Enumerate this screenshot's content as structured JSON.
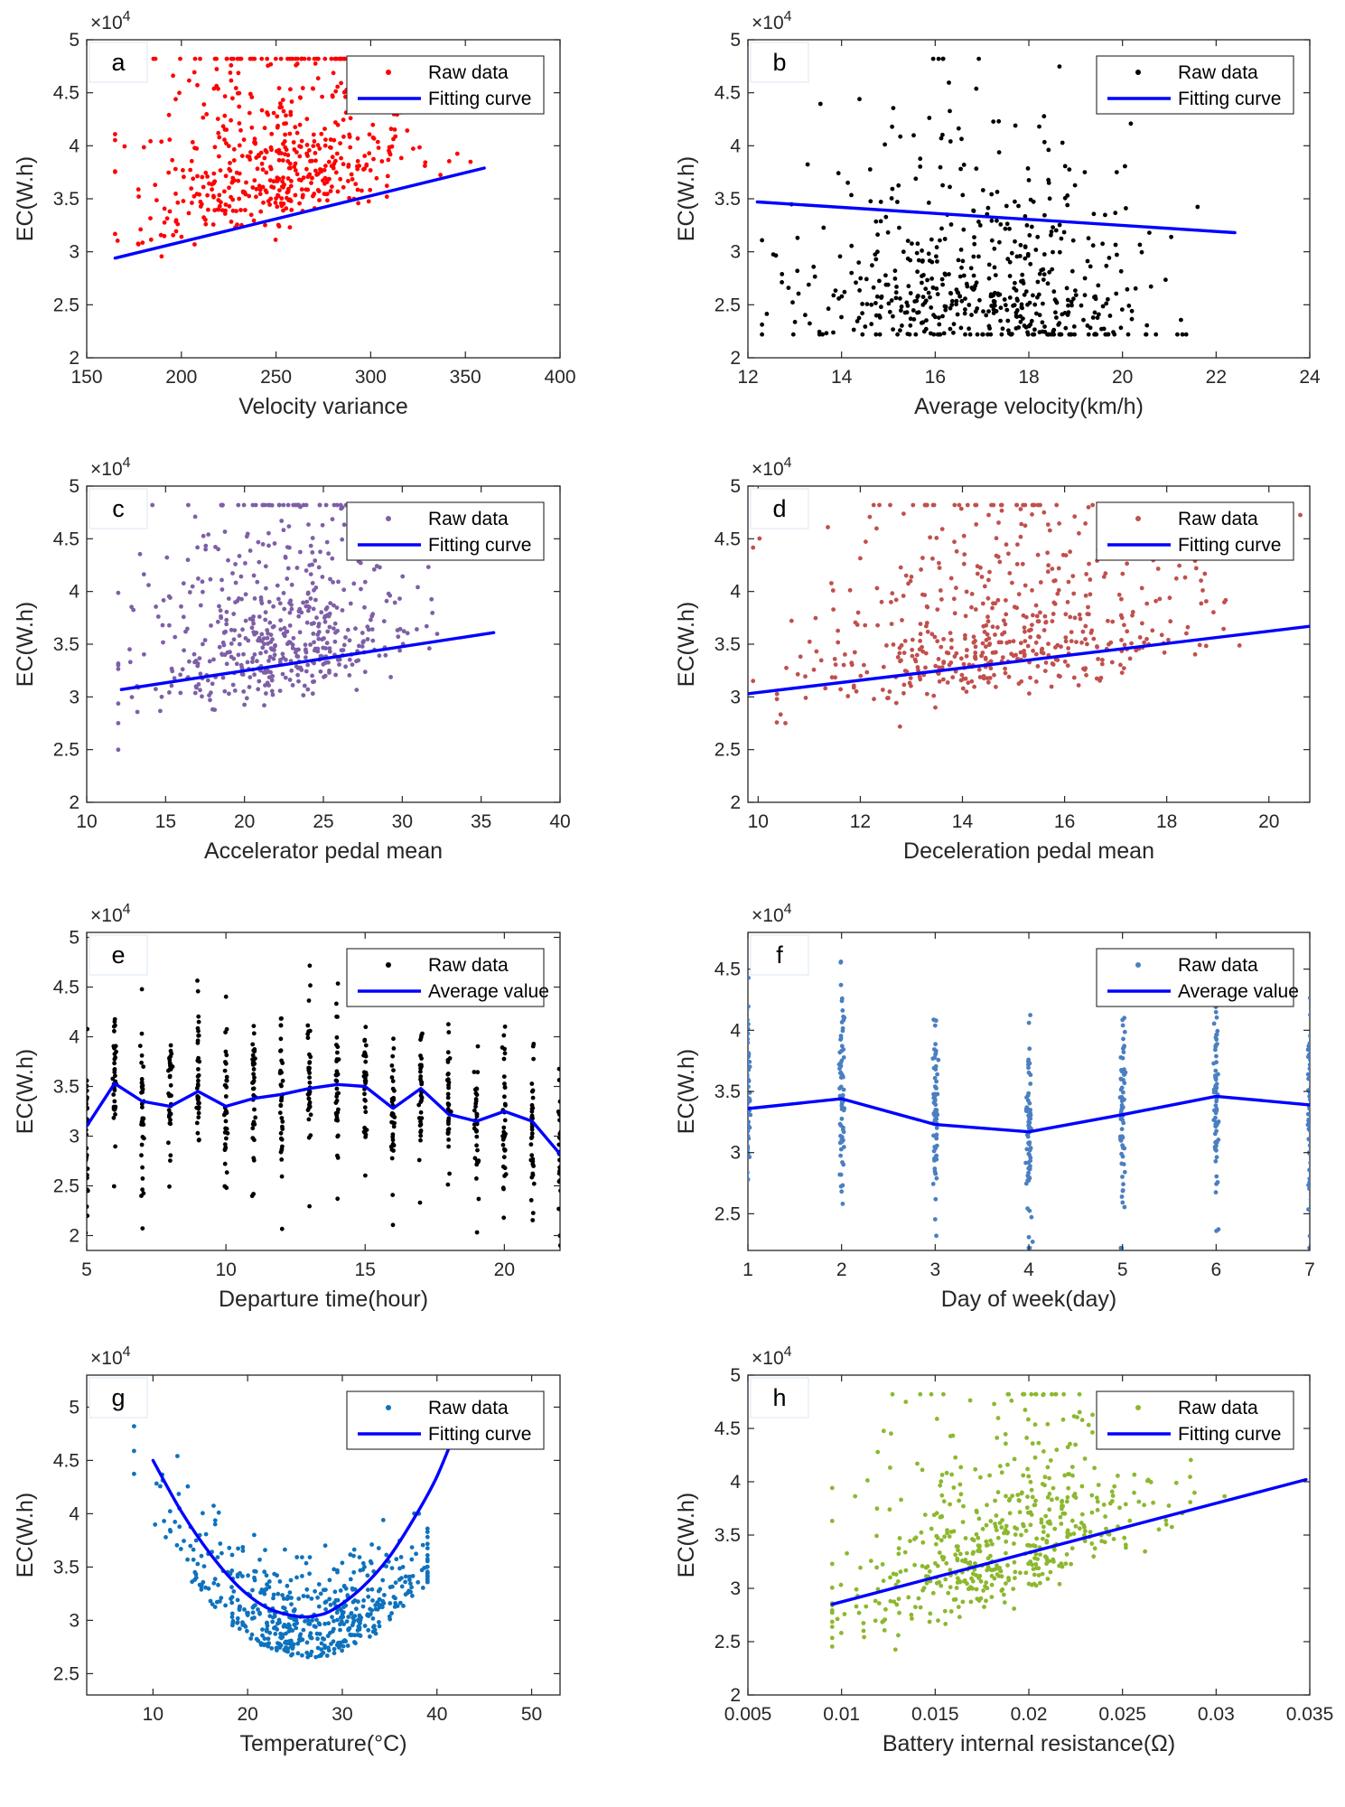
{
  "chart_data": [
    {
      "panel": "a",
      "type": "scatter",
      "title": "",
      "xlabel": "Velocity variance",
      "ylabel": "EC(W.h)",
      "y_multiplier": "×10",
      "y_multiplier_exp": "4",
      "xlim": [
        150,
        400
      ],
      "ylim": [
        2,
        5
      ],
      "xticks": [
        150,
        200,
        250,
        300,
        350,
        400
      ],
      "xtick_labels": [
        "150",
        "200",
        "250",
        "300",
        "350",
        "400"
      ],
      "yticks": [
        2,
        2.5,
        3,
        3.5,
        4,
        4.5,
        5
      ],
      "ytick_labels": [
        "2",
        "2.5",
        "3",
        "3.5",
        "4",
        "4.5",
        "5"
      ],
      "point_color": "#ff0000",
      "point_cloud": {
        "n": 560,
        "x_center": 255,
        "x_spread": 38,
        "x_min": 165,
        "x_max": 360,
        "y_base": 2.28,
        "y_scale": 0.78,
        "y_trend": 0.0045,
        "y_min": 2.22,
        "y_max": 4.82,
        "seed": 11
      },
      "series": [
        {
          "name": "Fitting curve",
          "kind": "line",
          "color": "#0000ff",
          "x": [
            165,
            360
          ],
          "y": [
            2.94,
            3.79
          ]
        }
      ],
      "legend": {
        "position": "top-right",
        "items": [
          {
            "label": "Raw data",
            "kind": "dot",
            "color": "#ff0000"
          },
          {
            "label": "Fitting curve",
            "kind": "line",
            "color": "#0000ff"
          }
        ]
      }
    },
    {
      "panel": "b",
      "type": "scatter",
      "title": "",
      "xlabel": "Average velocity(km/h)",
      "ylabel": "EC(W.h)",
      "y_multiplier": "×10",
      "y_multiplier_exp": "4",
      "xlim": [
        12,
        24
      ],
      "ylim": [
        2,
        5
      ],
      "xticks": [
        12,
        14,
        16,
        18,
        20,
        22,
        24
      ],
      "xtick_labels": [
        "12",
        "14",
        "16",
        "18",
        "20",
        "22",
        "24"
      ],
      "yticks": [
        2,
        2.5,
        3,
        3.5,
        4,
        4.5,
        5
      ],
      "ytick_labels": [
        "2",
        "2.5",
        "3",
        "3.5",
        "4",
        "4.5",
        "5"
      ],
      "point_color": "#000000",
      "point_cloud": {
        "n": 560,
        "x_center": 17,
        "x_spread": 1.8,
        "x_min": 12.3,
        "x_max": 22.3,
        "y_base": 2.5,
        "y_scale": 0.78,
        "y_trend": -0.02,
        "y_min": 2.22,
        "y_max": 4.82,
        "seed": 23
      },
      "series": [
        {
          "name": "Fitting curve",
          "kind": "line",
          "color": "#0000ff",
          "x": [
            12.2,
            22.4
          ],
          "y": [
            3.47,
            3.18
          ]
        }
      ],
      "legend": {
        "position": "top-right",
        "items": [
          {
            "label": "Raw data",
            "kind": "dot",
            "color": "#000000"
          },
          {
            "label": "Fitting curve",
            "kind": "line",
            "color": "#0000ff"
          }
        ]
      }
    },
    {
      "panel": "c",
      "type": "scatter",
      "title": "",
      "xlabel": "Accelerator pedal mean",
      "ylabel": "EC(W.h)",
      "y_multiplier": "×10",
      "y_multiplier_exp": "4",
      "xlim": [
        10,
        40
      ],
      "ylim": [
        2,
        5
      ],
      "xticks": [
        10,
        15,
        20,
        25,
        30,
        35,
        40
      ],
      "xtick_labels": [
        "10",
        "15",
        "20",
        "25",
        "30",
        "35",
        "40"
      ],
      "yticks": [
        2,
        2.5,
        3,
        3.5,
        4,
        4.5,
        5
      ],
      "ytick_labels": [
        "2",
        "2.5",
        "3",
        "3.5",
        "4",
        "4.5",
        "5"
      ],
      "point_color": "#7e5fa6",
      "point_cloud": {
        "n": 560,
        "x_center": 22.5,
        "x_spread": 4.5,
        "x_min": 12,
        "x_max": 36,
        "y_base": 2.35,
        "y_scale": 0.78,
        "y_trend": 0.035,
        "y_min": 2.22,
        "y_max": 4.82,
        "seed": 37
      },
      "series": [
        {
          "name": "Fitting curve",
          "kind": "line",
          "color": "#0000ff",
          "x": [
            12.2,
            35.8
          ],
          "y": [
            3.07,
            3.61
          ]
        }
      ],
      "legend": {
        "position": "top-right",
        "items": [
          {
            "label": "Raw data",
            "kind": "dot",
            "color": "#7e5fa6"
          },
          {
            "label": "Fitting curve",
            "kind": "line",
            "color": "#0000ff"
          }
        ]
      }
    },
    {
      "panel": "d",
      "type": "scatter",
      "title": "",
      "xlabel": "Deceleration pedal mean",
      "ylabel": "EC(W.h)",
      "y_multiplier": "×10",
      "y_multiplier_exp": "4",
      "xlim": [
        9.8,
        20.8
      ],
      "ylim": [
        2,
        5
      ],
      "xticks": [
        10,
        12,
        14,
        16,
        18,
        20
      ],
      "xtick_labels": [
        "10",
        "12",
        "14",
        "16",
        "18",
        "20"
      ],
      "yticks": [
        2,
        2.5,
        3,
        3.5,
        4,
        4.5,
        5
      ],
      "ytick_labels": [
        "2",
        "2.5",
        "3",
        "3.5",
        "4",
        "4.5",
        "5"
      ],
      "point_color": "#c0504d",
      "point_cloud": {
        "n": 560,
        "x_center": 14.8,
        "x_spread": 1.9,
        "x_min": 9.9,
        "x_max": 20.7,
        "y_base": 2.15,
        "y_scale": 0.78,
        "y_trend": 0.07,
        "y_min": 2.22,
        "y_max": 4.82,
        "seed": 41
      },
      "series": [
        {
          "name": "Fitting curve",
          "kind": "line",
          "color": "#0000ff",
          "x": [
            9.8,
            20.8
          ],
          "y": [
            3.03,
            3.67
          ]
        }
      ],
      "legend": {
        "position": "top-right",
        "items": [
          {
            "label": "Raw data",
            "kind": "dot",
            "color": "#c0504d"
          },
          {
            "label": "Fitting curve",
            "kind": "line",
            "color": "#0000ff"
          }
        ]
      }
    },
    {
      "panel": "e",
      "type": "scatter",
      "title": "",
      "xlabel": "Departure time(hour)",
      "ylabel": "EC(W.h)",
      "y_multiplier": "×10",
      "y_multiplier_exp": "4",
      "xlim": [
        5,
        22
      ],
      "ylim": [
        1.85,
        5.05
      ],
      "xticks": [
        5,
        10,
        15,
        20
      ],
      "xtick_labels": [
        "5",
        "10",
        "15",
        "20"
      ],
      "yticks": [
        2,
        2.5,
        3,
        3.5,
        4,
        4.5,
        5
      ],
      "ytick_labels": [
        "2",
        "2.5",
        "3",
        "3.5",
        "4",
        "4.5",
        "5"
      ],
      "point_color": "#000000",
      "strip_cloud": {
        "xs": [
          5,
          6,
          7,
          8,
          9,
          10,
          11,
          12,
          13,
          14,
          15,
          16,
          17,
          18,
          19,
          20,
          21,
          22
        ],
        "per_x": 36,
        "jitter": 0.03,
        "y_spread": 0.45,
        "y_min": 1.9,
        "y_max": 5.02,
        "seed": 53
      },
      "series": [
        {
          "name": "Average value",
          "kind": "line",
          "color": "#0000ff",
          "x": [
            5,
            6,
            7,
            8,
            9,
            10,
            11,
            12,
            13,
            14,
            15,
            16,
            17,
            18,
            19,
            20,
            21,
            22
          ],
          "y": [
            3.1,
            3.53,
            3.35,
            3.3,
            3.45,
            3.3,
            3.38,
            3.42,
            3.48,
            3.52,
            3.5,
            3.28,
            3.48,
            3.22,
            3.15,
            3.25,
            3.15,
            2.82
          ]
        }
      ],
      "legend": {
        "position": "top-right",
        "items": [
          {
            "label": "Raw data",
            "kind": "dot",
            "color": "#000000"
          },
          {
            "label": "Average value",
            "kind": "line",
            "color": "#0000ff"
          }
        ]
      }
    },
    {
      "panel": "f",
      "type": "scatter",
      "title": "",
      "xlabel": "Day of week(day)",
      "ylabel": "EC(W.h)",
      "y_multiplier": "×10",
      "y_multiplier_exp": "4",
      "xlim": [
        1,
        7
      ],
      "ylim": [
        2.2,
        4.8
      ],
      "xticks": [
        1,
        2,
        3,
        4,
        5,
        6,
        7
      ],
      "xtick_labels": [
        "1",
        "2",
        "3",
        "4",
        "5",
        "6",
        "7"
      ],
      "yticks": [
        2.5,
        3,
        3.5,
        4,
        4.5
      ],
      "ytick_labels": [
        "2.5",
        "3",
        "3.5",
        "4",
        "4.5"
      ],
      "point_color": "#4a7fc1",
      "strip_cloud": {
        "xs": [
          1,
          2,
          3,
          4,
          5,
          6,
          7
        ],
        "per_x": 70,
        "jitter": 0.012,
        "y_spread": 0.42,
        "y_min": 2.22,
        "y_max": 4.8,
        "seed": 67
      },
      "series": [
        {
          "name": "Average value",
          "kind": "line",
          "color": "#0000ff",
          "x": [
            1,
            2,
            3,
            4,
            5,
            6,
            7
          ],
          "y": [
            3.36,
            3.44,
            3.23,
            3.17,
            3.31,
            3.46,
            3.39
          ]
        }
      ],
      "legend": {
        "position": "top-right",
        "items": [
          {
            "label": "Raw data",
            "kind": "dot",
            "color": "#4a7fc1"
          },
          {
            "label": "Average value",
            "kind": "line",
            "color": "#0000ff"
          }
        ]
      }
    },
    {
      "panel": "g",
      "type": "scatter",
      "title": "",
      "xlabel": "Temperature(°C)",
      "ylabel": "EC(W.h)",
      "y_multiplier": "×10",
      "y_multiplier_exp": "4",
      "xlim": [
        3,
        53
      ],
      "ylim": [
        2.3,
        5.3
      ],
      "xticks": [
        10,
        20,
        30,
        40,
        50
      ],
      "xtick_labels": [
        "10",
        "20",
        "30",
        "40",
        "50"
      ],
      "yticks": [
        2.5,
        3,
        3.5,
        4,
        4.5,
        5
      ],
      "ytick_labels": [
        "2.5",
        "3",
        "3.5",
        "4",
        "4.5",
        "5"
      ],
      "point_color": "#0e72bd",
      "point_cloud": {
        "n": 560,
        "x_center": 26,
        "x_spread": 7.5,
        "x_min": 8,
        "x_max": 39,
        "quad": {
          "a": 0.0045,
          "h": 26.5,
          "k": 2.75
        },
        "y_scale": 0.55,
        "y_min": 2.35,
        "y_max": 4.82,
        "seed": 79
      },
      "series": [
        {
          "name": "Fitting curve",
          "kind": "curve",
          "color": "#0000ff",
          "x": [
            10,
            13,
            16,
            19,
            22,
            25,
            27,
            29,
            32,
            35,
            38,
            40,
            42
          ],
          "y": [
            4.5,
            4.02,
            3.63,
            3.32,
            3.12,
            3.04,
            3.04,
            3.1,
            3.3,
            3.6,
            4.02,
            4.35,
            4.78
          ]
        }
      ],
      "legend": {
        "position": "top-right",
        "items": [
          {
            "label": "Raw data",
            "kind": "dot",
            "color": "#0e72bd"
          },
          {
            "label": "Fitting curve",
            "kind": "line",
            "color": "#0000ff"
          }
        ]
      }
    },
    {
      "panel": "h",
      "type": "scatter",
      "title": "",
      "xlabel": "Battery internal resistance(Ω)",
      "ylabel": "EC(W.h)",
      "y_multiplier": "×10",
      "y_multiplier_exp": "4",
      "xlim": [
        0.005,
        0.035
      ],
      "ylim": [
        2,
        5
      ],
      "xticks": [
        0.005,
        0.01,
        0.015,
        0.02,
        0.025,
        0.03,
        0.035
      ],
      "xtick_labels": [
        "0.005",
        "0.01",
        "0.015",
        "0.02",
        "0.025",
        "0.03",
        "0.035"
      ],
      "yticks": [
        2,
        2.5,
        3,
        3.5,
        4,
        4.5,
        5
      ],
      "ytick_labels": [
        "2",
        "2.5",
        "3",
        "3.5",
        "4",
        "4.5",
        "5"
      ],
      "point_color": "#8cb82e",
      "point_cloud": {
        "n": 560,
        "x_center": 0.0185,
        "x_spread": 0.0045,
        "x_min": 0.0095,
        "x_max": 0.0348,
        "y_base": 1.85,
        "y_scale": 0.72,
        "y_trend": 62,
        "y_min": 2.22,
        "y_max": 4.82,
        "seed": 91
      },
      "series": [
        {
          "name": "Fitting curve",
          "kind": "line",
          "color": "#0000ff",
          "x": [
            0.0095,
            0.0348
          ],
          "y": [
            2.85,
            4.02
          ]
        }
      ],
      "legend": {
        "position": "top-right",
        "items": [
          {
            "label": "Raw data",
            "kind": "dot",
            "color": "#8cb82e"
          },
          {
            "label": "Fitting curve",
            "kind": "line",
            "color": "#0000ff"
          }
        ]
      }
    }
  ]
}
